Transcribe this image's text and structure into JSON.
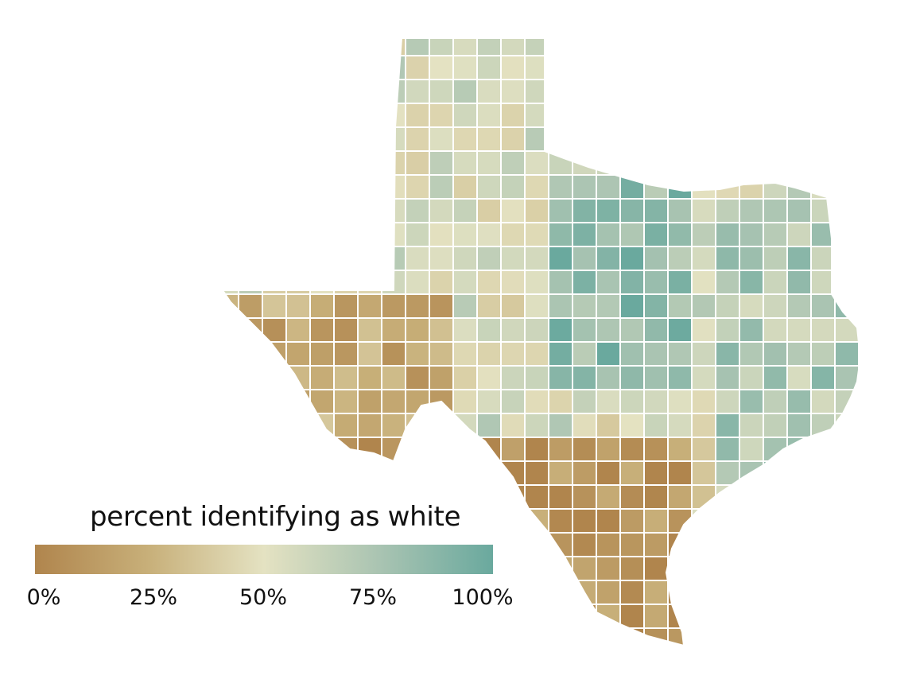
{
  "legend": {
    "title": "percent identifying as white",
    "ticks": [
      "0%",
      "25%",
      "50%",
      "75%",
      "100%"
    ],
    "tick_values": [
      0,
      25,
      50,
      75,
      100
    ],
    "colors": [
      "#b0854d",
      "#c8b07a",
      "#e4e2c2",
      "#aac4b2",
      "#6aa99e"
    ]
  },
  "colors": {
    "border": "#ffffff",
    "background": "#ffffff"
  }
}
